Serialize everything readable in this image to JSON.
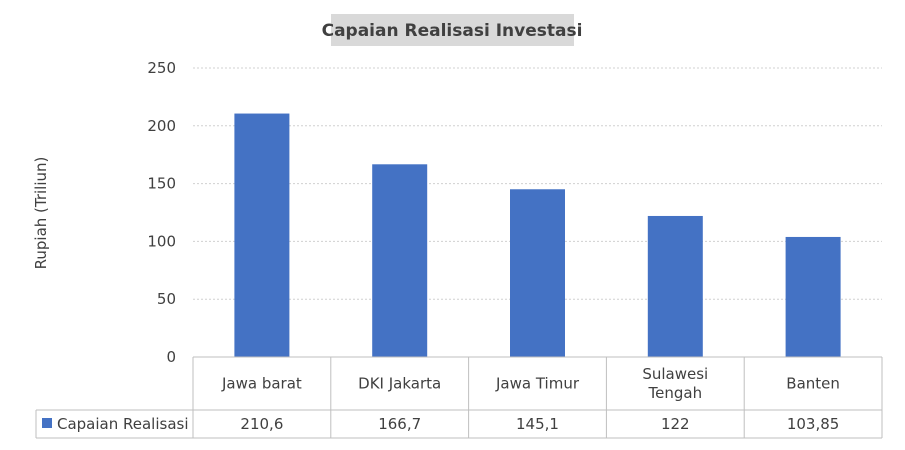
{
  "chart_data": {
    "type": "bar",
    "title": "Capaian Realisasi Investasi",
    "ylabel": "Rupiah (Triliun)",
    "xlabel": "",
    "ylim": [
      0,
      250
    ],
    "yticks": [
      0,
      50,
      100,
      150,
      200,
      250
    ],
    "grid": true,
    "categories": [
      [
        "Jawa barat"
      ],
      [
        "DKI Jakarta"
      ],
      [
        "Jawa Timur"
      ],
      [
        "Sulawesi",
        "Tengah"
      ],
      [
        "Banten"
      ]
    ],
    "series": [
      {
        "name": "Capaian Realisasi",
        "color": "#4472c4",
        "values": [
          210.6,
          166.7,
          145.1,
          122,
          103.85
        ],
        "value_labels": [
          "210,6",
          "166,7",
          "145,1",
          "122",
          "103,85"
        ]
      }
    ],
    "legend": "data-table"
  }
}
